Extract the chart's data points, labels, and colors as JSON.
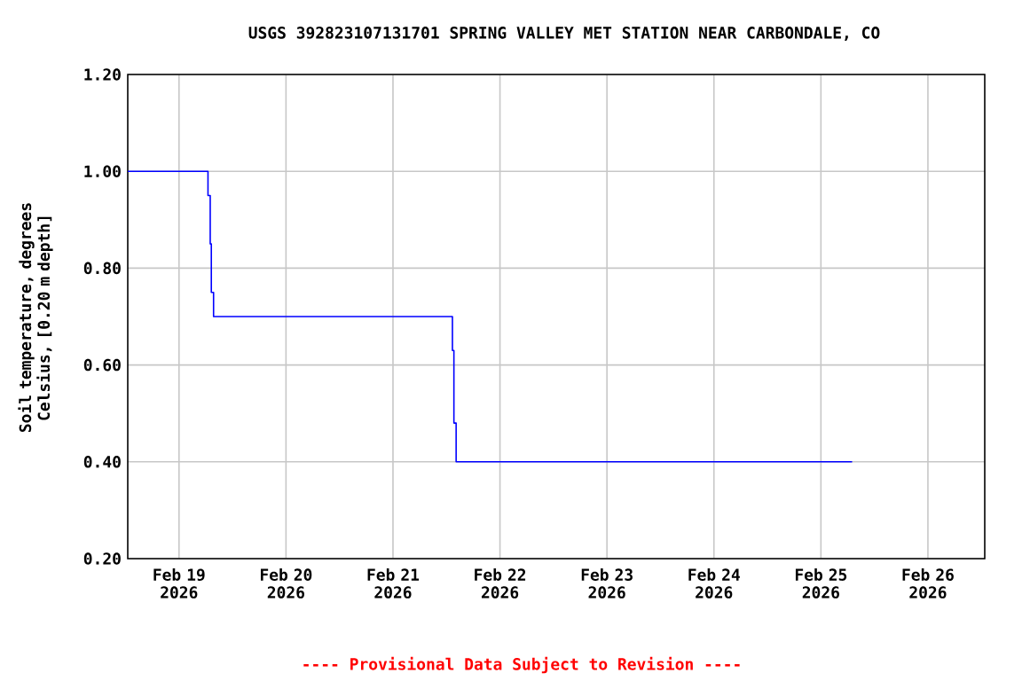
{
  "chart_data": {
    "type": "step",
    "title": "USGS 392823107131701 SPRING VALLEY MET STATION NEAR CARBONDALE, CO",
    "ylabel": "Soil temperature, degrees Celsius, [0.20 m depth]",
    "annotations": [
      "---- Provisional Data Subject to Revision ----"
    ],
    "x": [
      "2026-02-18T12:30",
      "2026-02-19T06:30",
      "2026-02-19T07:00",
      "2026-02-19T07:15",
      "2026-02-19T07:45",
      "2026-02-21T13:20",
      "2026-02-21T13:40",
      "2026-02-21T14:10",
      "2026-02-25T07:00"
    ],
    "series": [
      {
        "color": "#0000ff",
        "values": [
          1.0,
          0.95,
          0.85,
          0.75,
          0.7,
          0.63,
          0.48,
          0.4,
          0.4
        ]
      }
    ],
    "xlim": [
      "2026-02-18T12:30",
      "2026-02-26T12:45"
    ],
    "xticks": [
      {
        "value": "2026-02-19",
        "label": "Feb 19 2026"
      },
      {
        "value": "2026-02-20",
        "label": "Feb 20 2026"
      },
      {
        "value": "2026-02-21",
        "label": "Feb 21 2026"
      },
      {
        "value": "2026-02-22",
        "label": "Feb 22 2026"
      },
      {
        "value": "2026-02-23",
        "label": "Feb 23 2026"
      },
      {
        "value": "2026-02-24",
        "label": "Feb 24 2026"
      },
      {
        "value": "2026-02-25",
        "label": "Feb 25 2026"
      },
      {
        "value": "2026-02-26",
        "label": "Feb 26 2026"
      }
    ],
    "ylim": [
      0.2,
      1.2
    ],
    "yticks": [
      {
        "value": 0.2,
        "label": "0.20"
      },
      {
        "value": 0.4,
        "label": "0.40"
      },
      {
        "value": 0.6,
        "label": "0.60"
      },
      {
        "value": 0.8,
        "label": "0.80"
      },
      {
        "value": 1.0,
        "label": "1.00"
      },
      {
        "value": 1.2,
        "label": "1.20"
      }
    ],
    "grid": true,
    "marker": "none",
    "line_style": "solid"
  }
}
